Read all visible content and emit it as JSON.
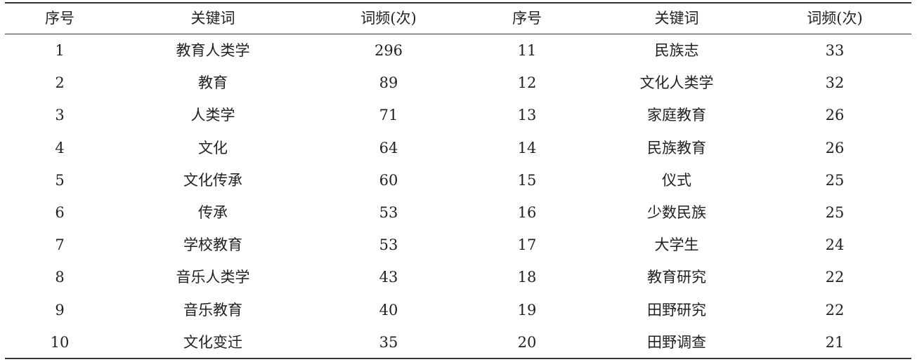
{
  "table": {
    "headers": [
      "序号",
      "关键词",
      "词频(次)",
      "序号",
      "关键词",
      "词频(次)"
    ],
    "rows": [
      [
        "1",
        "教育人类学",
        "296",
        "11",
        "民族志",
        "33"
      ],
      [
        "2",
        "教育",
        "89",
        "12",
        "文化人类学",
        "32"
      ],
      [
        "3",
        "人类学",
        "71",
        "13",
        "家庭教育",
        "26"
      ],
      [
        "4",
        "文化",
        "64",
        "14",
        "民族教育",
        "26"
      ],
      [
        "5",
        "文化传承",
        "60",
        "15",
        "仪式",
        "25"
      ],
      [
        "6",
        "传承",
        "53",
        "16",
        "少数民族",
        "25"
      ],
      [
        "7",
        "学校教育",
        "53",
        "17",
        "大学生",
        "24"
      ],
      [
        "8",
        "音乐人类学",
        "43",
        "18",
        "教育研究",
        "22"
      ],
      [
        "9",
        "音乐教育",
        "40",
        "19",
        "田野研究",
        "22"
      ],
      [
        "10",
        "文化变迁",
        "35",
        "20",
        "田野调查",
        "21"
      ]
    ]
  }
}
